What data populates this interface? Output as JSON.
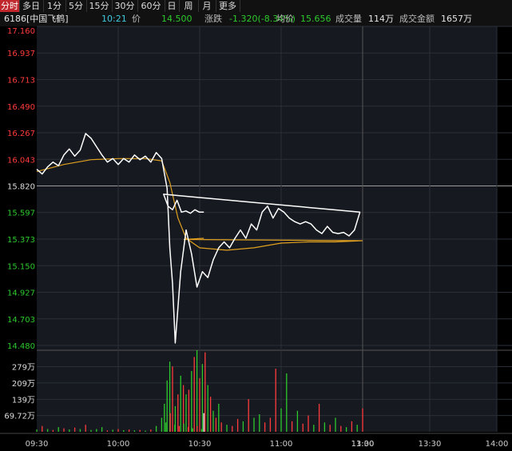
{
  "tabs": [
    {
      "label": "分时",
      "active": true
    },
    {
      "label": "多日"
    },
    {
      "label": "1分"
    },
    {
      "label": "5分"
    },
    {
      "label": "15分"
    },
    {
      "label": "30分"
    },
    {
      "label": "60分"
    },
    {
      "label": "日"
    },
    {
      "label": "周"
    },
    {
      "label": "月"
    },
    {
      "label": "更多"
    }
  ],
  "info": {
    "code": "6186",
    "name": "[中国飞鹤]",
    "time": "10:21",
    "price_label": "价",
    "price": "14.500",
    "change_label": "涨跌",
    "change": "-1.320(-8.34%)",
    "avg_label": "均价",
    "avg": "15.656",
    "volume_label": "成交量",
    "volume": "114万",
    "turnover_label": "成交金额",
    "turnover": "1657万"
  },
  "colors": {
    "up": "#ff3b3b",
    "down": "#2dc92d",
    "price_line": "#ffffff",
    "avg_line": "#e0a020",
    "prev_close": "#9a9a9a",
    "grid": "#2a2f38"
  },
  "chart_data": {
    "type": "line",
    "prev_close": 15.82,
    "ylim": [
      14.48,
      17.16
    ],
    "y_ticks": [
      "17.160",
      "16.937",
      "16.713",
      "16.490",
      "16.267",
      "16.043",
      "15.820",
      "15.597",
      "15.373",
      "15.150",
      "14.927",
      "14.703",
      "14.480"
    ],
    "x_ticks": [
      "09:30",
      "10:00",
      "10:30",
      "11:00",
      "11:30",
      "13:00",
      "13:30",
      "14:00"
    ],
    "vol_ticks": [
      "279万",
      "209万",
      "139万",
      "69.72万"
    ],
    "vol_ylim": [
      0,
      349
    ],
    "price": [
      [
        "09:30",
        15.96
      ],
      [
        "09:32",
        15.92
      ],
      [
        "09:34",
        15.98
      ],
      [
        "09:36",
        16.02
      ],
      [
        "09:38",
        15.99
      ],
      [
        "09:40",
        16.08
      ],
      [
        "09:42",
        16.13
      ],
      [
        "09:44",
        16.07
      ],
      [
        "09:46",
        16.12
      ],
      [
        "09:48",
        16.26
      ],
      [
        "09:50",
        16.22
      ],
      [
        "09:52",
        16.15
      ],
      [
        "09:54",
        16.08
      ],
      [
        "09:56",
        16.02
      ],
      [
        "09:58",
        16.05
      ],
      [
        "10:00",
        16.0
      ],
      [
        "10:02",
        16.05
      ],
      [
        "10:04",
        16.02
      ],
      [
        "10:06",
        16.08
      ],
      [
        "10:08",
        16.04
      ],
      [
        "10:10",
        16.07
      ],
      [
        "10:12",
        16.02
      ],
      [
        "10:14",
        16.1
      ],
      [
        "10:16",
        16.05
      ],
      [
        "10:18",
        15.8
      ],
      [
        "10:19",
        15.3
      ],
      [
        "10:20",
        15.0
      ],
      [
        "10:21",
        14.5
      ],
      [
        "10:22",
        14.8
      ],
      [
        "10:23",
        15.1
      ],
      [
        "10:25",
        15.45
      ],
      [
        "10:27",
        15.25
      ],
      [
        "10:29",
        14.97
      ],
      [
        "10:31",
        15.1
      ],
      [
        "10:33",
        15.05
      ],
      [
        "10:35",
        15.2
      ],
      [
        "10:37",
        15.3
      ],
      [
        "10:39",
        15.35
      ],
      [
        "10:41",
        15.3
      ],
      [
        "10:43",
        15.38
      ],
      [
        "10:45",
        15.45
      ],
      [
        "10:47",
        15.38
      ],
      [
        "10:49",
        15.5
      ],
      [
        "10:51",
        15.45
      ],
      [
        "10:53",
        15.6
      ],
      [
        "10:55",
        15.65
      ],
      [
        "10:57",
        15.55
      ],
      [
        "10:59",
        15.63
      ],
      [
        "11:01",
        15.6
      ],
      [
        "11:03",
        15.55
      ],
      [
        "11:05",
        15.52
      ],
      [
        "11:07",
        15.5
      ],
      [
        "11:09",
        15.52
      ],
      [
        "11:11",
        15.5
      ],
      [
        "11:13",
        15.45
      ],
      [
        "11:15",
        15.42
      ],
      [
        "11:17",
        15.48
      ],
      [
        "11:19",
        15.43
      ],
      [
        "11:21",
        15.42
      ],
      [
        "11:23",
        15.43
      ],
      [
        "11:25",
        15.4
      ],
      [
        "11:27",
        15.45
      ],
      [
        "11:29",
        15.6
      ],
      [
        "11:31",
        15.75
      ],
      [
        "11:33",
        15.65
      ],
      [
        "11:35",
        15.62
      ],
      [
        "11:37",
        15.7
      ],
      [
        "11:39",
        15.6
      ],
      [
        "11:41",
        15.61
      ],
      [
        "11:43",
        15.59
      ],
      [
        "11:45",
        15.62
      ],
      [
        "11:47",
        15.6
      ],
      [
        "11:49",
        15.6
      ]
    ],
    "avg": [
      [
        "09:30",
        15.94
      ],
      [
        "09:40",
        16.0
      ],
      [
        "09:50",
        16.04
      ],
      [
        "10:00",
        16.05
      ],
      [
        "10:10",
        16.05
      ],
      [
        "10:16",
        16.03
      ],
      [
        "10:19",
        15.85
      ],
      [
        "10:22",
        15.55
      ],
      [
        "10:25",
        15.38
      ],
      [
        "10:30",
        15.3
      ],
      [
        "10:40",
        15.28
      ],
      [
        "10:50",
        15.3
      ],
      [
        "11:00",
        15.34
      ],
      [
        "11:10",
        15.35
      ],
      [
        "11:20",
        15.35
      ],
      [
        "11:30",
        15.36
      ],
      [
        "11:40",
        15.37
      ],
      [
        "11:49",
        15.38
      ]
    ],
    "volume": [
      [
        "09:30",
        10,
        "d"
      ],
      [
        "09:32",
        25,
        "u"
      ],
      [
        "09:34",
        12,
        "d"
      ],
      [
        "09:36",
        8,
        "u"
      ],
      [
        "09:38",
        20,
        "d"
      ],
      [
        "09:40",
        15,
        "u"
      ],
      [
        "09:42",
        10,
        "d"
      ],
      [
        "09:44",
        18,
        "u"
      ],
      [
        "09:46",
        12,
        "d"
      ],
      [
        "09:48",
        30,
        "u"
      ],
      [
        "09:50",
        8,
        "d"
      ],
      [
        "09:52",
        12,
        "d"
      ],
      [
        "09:54",
        20,
        "d"
      ],
      [
        "09:56",
        6,
        "u"
      ],
      [
        "09:58",
        9,
        "d"
      ],
      [
        "10:00",
        12,
        "u"
      ],
      [
        "10:02",
        7,
        "d"
      ],
      [
        "10:04",
        10,
        "u"
      ],
      [
        "10:06",
        6,
        "d"
      ],
      [
        "10:08",
        8,
        "u"
      ],
      [
        "10:10",
        5,
        "d"
      ],
      [
        "10:12",
        10,
        "u"
      ],
      [
        "10:14",
        25,
        "d"
      ],
      [
        "10:16",
        60,
        "d"
      ],
      [
        "10:17",
        120,
        "d"
      ],
      [
        "10:18",
        220,
        "d"
      ],
      [
        "10:19",
        300,
        "d"
      ],
      [
        "10:20",
        280,
        "u"
      ],
      [
        "10:21",
        110,
        "d"
      ],
      [
        "10:22",
        160,
        "u"
      ],
      [
        "10:23",
        240,
        "d"
      ],
      [
        "10:24",
        200,
        "u"
      ],
      [
        "10:25",
        160,
        "d"
      ],
      [
        "10:26",
        180,
        "u"
      ],
      [
        "10:27",
        260,
        "d"
      ],
      [
        "10:28",
        320,
        "u"
      ],
      [
        "10:29",
        349,
        "d"
      ],
      [
        "10:30",
        230,
        "u"
      ],
      [
        "10:31",
        290,
        "d"
      ],
      [
        "10:32",
        340,
        "u"
      ],
      [
        "10:33",
        200,
        "d"
      ],
      [
        "10:34",
        150,
        "u"
      ],
      [
        "10:35",
        90,
        "d"
      ],
      [
        "10:36",
        60,
        "u"
      ],
      [
        "10:37",
        120,
        "d"
      ],
      [
        "10:38",
        40,
        "u"
      ],
      [
        "10:40",
        30,
        "d"
      ],
      [
        "10:42",
        25,
        "u"
      ],
      [
        "10:44",
        55,
        "u"
      ],
      [
        "10:46",
        45,
        "d"
      ],
      [
        "10:48",
        140,
        "u"
      ],
      [
        "10:50",
        60,
        "d"
      ],
      [
        "10:52",
        75,
        "d"
      ],
      [
        "10:54",
        40,
        "u"
      ],
      [
        "10:56",
        60,
        "u"
      ],
      [
        "10:58",
        270,
        "u"
      ],
      [
        "11:00",
        100,
        "d"
      ],
      [
        "11:02",
        250,
        "d"
      ],
      [
        "11:04",
        45,
        "u"
      ],
      [
        "11:06",
        90,
        "d"
      ],
      [
        "11:08",
        35,
        "u"
      ],
      [
        "11:10",
        70,
        "u"
      ],
      [
        "11:12",
        30,
        "d"
      ],
      [
        "11:14",
        120,
        "u"
      ],
      [
        "11:16",
        40,
        "d"
      ],
      [
        "11:18",
        30,
        "u"
      ],
      [
        "11:20",
        60,
        "d"
      ],
      [
        "11:22",
        25,
        "u"
      ],
      [
        "11:24",
        20,
        "d"
      ],
      [
        "11:26",
        45,
        "u"
      ],
      [
        "11:28",
        30,
        "d"
      ],
      [
        "11:30",
        100,
        "u"
      ],
      [
        "11:32",
        40,
        "d"
      ],
      [
        "11:34",
        80,
        "u"
      ],
      [
        "11:36",
        30,
        "d"
      ],
      [
        "11:38",
        25,
        "u"
      ],
      [
        "11:40",
        35,
        "d"
      ],
      [
        "11:42",
        20,
        "u"
      ],
      [
        "11:44",
        15,
        "d"
      ],
      [
        "11:46",
        25,
        "u"
      ],
      [
        "11:48",
        12,
        "d"
      ],
      [
        "11:49",
        80,
        "w"
      ]
    ]
  }
}
